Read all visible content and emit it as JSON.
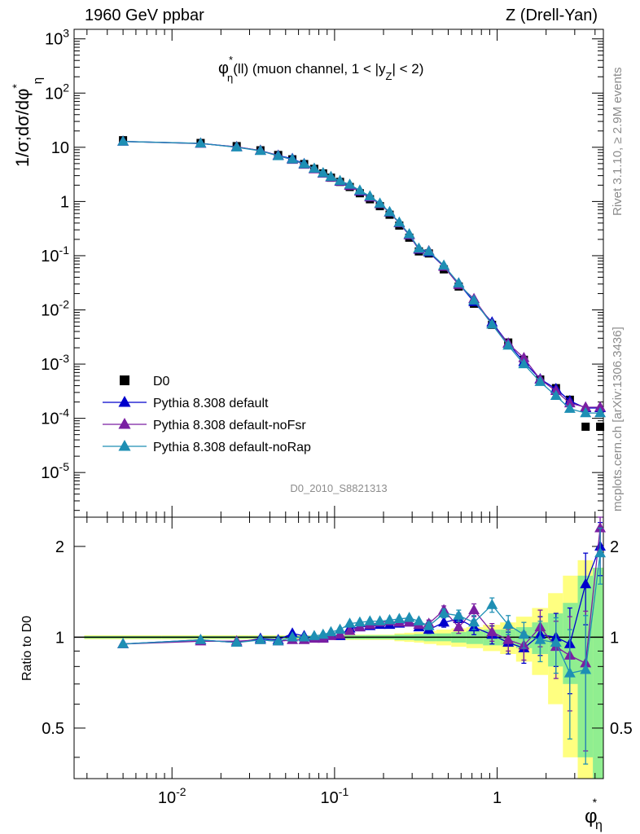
{
  "header": {
    "left": "1960 GeV ppbar",
    "right": "Z (Drell-Yan)"
  },
  "side_labels": {
    "rivet": "Rivet 3.1.10, ≥ 2.9M events",
    "mcplots": "mcplots.cern.ch [arXiv:1306.3436]"
  },
  "chart_data": [
    {
      "type": "scatter",
      "panel": "main",
      "title": "φ*η(ll) (muon channel, 1 < |yZ| < 2)",
      "title_parts": {
        "main": "φ",
        "sup": "*",
        "sub": "η",
        "rest": "(ll) (muon channel, 1 < |y",
        "sub2": "Z",
        "end": "| < 2)"
      },
      "ylabel": "1/σ;dσ/dφ*η",
      "xlabel": "φ*η",
      "x_scale": "log",
      "y_scale": "log",
      "xlim": [
        0.0025,
        4.5
      ],
      "ylim": [
        1.5e-06,
        1500
      ],
      "y_tick_labels": [
        "10^-5",
        "10^-4",
        "10^-3",
        "10^-2",
        "10^-1",
        "1",
        "10",
        "10^2",
        "10^3"
      ],
      "watermark": "D0_2010_S8821313",
      "legend_position": "lower-left",
      "x": [
        0.005,
        0.015,
        0.025,
        0.035,
        0.045,
        0.055,
        0.065,
        0.075,
        0.085,
        0.095,
        0.108,
        0.124,
        0.143,
        0.165,
        0.19,
        0.218,
        0.25,
        0.288,
        0.33,
        0.38,
        0.47,
        0.58,
        0.72,
        0.93,
        1.17,
        1.46,
        1.84,
        2.3,
        2.8,
        3.5,
        4.3
      ],
      "series": [
        {
          "name": "D0",
          "color": "#000000",
          "marker": "square",
          "values": [
            13.5,
            12.0,
            10.5,
            8.8,
            7.2,
            6.0,
            4.9,
            4.0,
            3.3,
            2.75,
            2.3,
            1.85,
            1.42,
            1.1,
            0.82,
            0.57,
            0.36,
            0.215,
            0.12,
            0.11,
            0.056,
            0.027,
            0.013,
            0.0053,
            0.0025,
            0.0012,
            0.00052,
            0.00036,
            0.00022,
            7e-05,
            7e-05
          ]
        },
        {
          "name": "Pythia 8.308 default",
          "color": "#0000cc",
          "marker": "triangle",
          "values": [
            12.8,
            11.8,
            10.1,
            8.7,
            7.05,
            6.15,
            4.95,
            4.0,
            3.3,
            2.8,
            2.33,
            1.98,
            1.53,
            1.2,
            0.9,
            0.63,
            0.4,
            0.24,
            0.13,
            0.116,
            0.063,
            0.031,
            0.014,
            0.0059,
            0.0024,
            0.0011,
            0.00053,
            0.00035,
            0.00021,
            0.000155,
            0.000155
          ]
        },
        {
          "name": "Pythia 8.308 default-noFsr",
          "color": "#7a1fa2",
          "marker": "triangle",
          "values": [
            12.8,
            11.7,
            10.2,
            8.7,
            7.0,
            5.9,
            4.8,
            3.95,
            3.28,
            2.78,
            2.35,
            1.95,
            1.55,
            1.2,
            0.9,
            0.63,
            0.4,
            0.24,
            0.132,
            0.122,
            0.063,
            0.029,
            0.016,
            0.0055,
            0.0024,
            0.0013,
            0.00052,
            0.00032,
            0.00019,
            0.00016,
            0.00016
          ]
        },
        {
          "name": "Pythia 8.308 default-noRap",
          "color": "#1e8fb4",
          "marker": "triangle",
          "values": [
            12.8,
            11.8,
            10.0,
            8.6,
            6.9,
            6.0,
            4.9,
            4.05,
            3.35,
            2.85,
            2.4,
            2.05,
            1.6,
            1.25,
            0.92,
            0.64,
            0.41,
            0.25,
            0.136,
            0.12,
            0.066,
            0.031,
            0.015,
            0.0054,
            0.0022,
            0.001,
            0.00047,
            0.00026,
            0.00015,
            0.000125,
            0.000125
          ]
        }
      ]
    },
    {
      "type": "scatter",
      "panel": "ratio",
      "ylabel": "Ratio to D0",
      "x_scale": "log",
      "y_scale": "log",
      "ylim": [
        0.34,
        2.5
      ],
      "y_tick_labels": [
        "0.5",
        "1",
        "2"
      ],
      "x_tick_labels": [
        "10^-2",
        "10^-1",
        "1"
      ],
      "band_relative_error_inner": [
        0.01,
        0.01,
        0.01,
        0.01,
        0.01,
        0.01,
        0.01,
        0.01,
        0.01,
        0.01,
        0.015,
        0.015,
        0.015,
        0.015,
        0.015,
        0.015,
        0.02,
        0.02,
        0.025,
        0.03,
        0.03,
        0.04,
        0.05,
        0.06,
        0.06,
        0.08,
        0.12,
        0.2,
        0.3,
        0.6,
        0.7
      ],
      "band_relative_error_outer": [
        0.015,
        0.015,
        0.015,
        0.015,
        0.015,
        0.015,
        0.015,
        0.015,
        0.015,
        0.015,
        0.02,
        0.02,
        0.02,
        0.02,
        0.02,
        0.02,
        0.03,
        0.035,
        0.04,
        0.05,
        0.06,
        0.07,
        0.08,
        0.1,
        0.12,
        0.17,
        0.25,
        0.4,
        0.6,
        0.8,
        0.7
      ],
      "series": [
        {
          "name": "Pythia 8.308 default",
          "color": "#0000cc",
          "values": [
            0.95,
            0.98,
            0.96,
            0.99,
            0.98,
            1.03,
            1.01,
            1.0,
            1.0,
            1.02,
            1.01,
            1.07,
            1.08,
            1.09,
            1.1,
            1.1,
            1.11,
            1.12,
            1.08,
            1.06,
            1.12,
            1.15,
            1.08,
            1.02,
            0.96,
            0.92,
            1.02,
            1.0,
            0.95,
            1.5,
            2.0
          ],
          "errors": [
            0.01,
            0.01,
            0.01,
            0.01,
            0.01,
            0.01,
            0.01,
            0.01,
            0.01,
            0.01,
            0.01,
            0.01,
            0.015,
            0.015,
            0.015,
            0.02,
            0.02,
            0.02,
            0.02,
            0.03,
            0.04,
            0.05,
            0.06,
            0.07,
            0.08,
            0.1,
            0.15,
            0.2,
            0.3,
            0.4,
            0.4
          ]
        },
        {
          "name": "Pythia 8.308 default-noFsr",
          "color": "#7a1fa2",
          "values": [
            0.95,
            0.97,
            0.97,
            0.98,
            0.97,
            0.98,
            0.98,
            0.99,
            0.99,
            1.01,
            1.02,
            1.05,
            1.08,
            1.1,
            1.12,
            1.13,
            1.12,
            1.12,
            1.1,
            1.11,
            1.23,
            1.08,
            1.23,
            1.04,
            0.98,
            0.94,
            1.08,
            0.93,
            0.87,
            0.82,
            2.3
          ],
          "errors": [
            0.01,
            0.01,
            0.01,
            0.01,
            0.01,
            0.01,
            0.01,
            0.01,
            0.01,
            0.01,
            0.01,
            0.01,
            0.015,
            0.015,
            0.015,
            0.02,
            0.02,
            0.02,
            0.02,
            0.03,
            0.04,
            0.05,
            0.06,
            0.07,
            0.08,
            0.1,
            0.15,
            0.2,
            0.3,
            0.4,
            0.4
          ]
        },
        {
          "name": "Pythia 8.308 default-noRap",
          "color": "#1e8fb4",
          "values": [
            0.95,
            0.98,
            0.96,
            0.98,
            0.97,
            1.0,
            1.0,
            1.01,
            1.02,
            1.04,
            1.06,
            1.11,
            1.12,
            1.13,
            1.13,
            1.14,
            1.15,
            1.16,
            1.13,
            1.09,
            1.2,
            1.18,
            1.12,
            1.28,
            1.1,
            1.02,
            0.98,
            0.96,
            0.76,
            0.78,
            1.9
          ],
          "errors": [
            0.01,
            0.01,
            0.01,
            0.01,
            0.01,
            0.01,
            0.01,
            0.01,
            0.01,
            0.01,
            0.01,
            0.01,
            0.015,
            0.015,
            0.015,
            0.02,
            0.02,
            0.02,
            0.02,
            0.03,
            0.04,
            0.05,
            0.06,
            0.07,
            0.08,
            0.1,
            0.15,
            0.2,
            0.3,
            0.4,
            0.4
          ]
        }
      ]
    }
  ]
}
